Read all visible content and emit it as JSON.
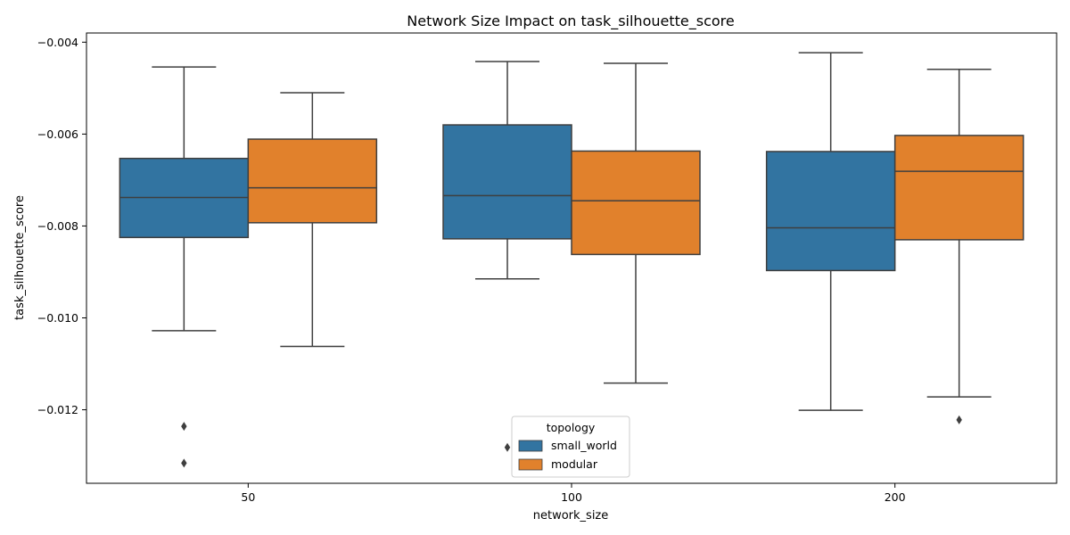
{
  "chart_data": {
    "type": "box",
    "title": "Network Size Impact on task_silhouette_score",
    "xlabel": "network_size",
    "ylabel": "task_silhouette_score",
    "categories": [
      "50",
      "100",
      "200"
    ],
    "ylim": [
      -0.0136,
      -0.0038
    ],
    "yticks": [
      -0.004,
      -0.006,
      -0.008,
      -0.01,
      -0.012
    ],
    "ytick_labels": [
      "−0.004",
      "−0.006",
      "−0.008",
      "−0.010",
      "−0.012"
    ],
    "grid": false,
    "legend": {
      "title": "topology",
      "placement": "lower-center"
    },
    "series": [
      {
        "name": "small_world",
        "color": "#3274a1",
        "boxes": [
          {
            "whisker_low": -0.01028,
            "q1": -0.00825,
            "median": -0.00738,
            "q3": -0.00653,
            "whisker_high": -0.00454,
            "outliers": [
              -0.01236,
              -0.01316
            ]
          },
          {
            "whisker_low": -0.00915,
            "q1": -0.00828,
            "median": -0.00734,
            "q3": -0.0058,
            "whisker_high": -0.00442,
            "outliers": [
              -0.01282
            ]
          },
          {
            "whisker_low": -0.01201,
            "q1": -0.00897,
            "median": -0.00804,
            "q3": -0.00638,
            "whisker_high": -0.00423,
            "outliers": []
          }
        ]
      },
      {
        "name": "modular",
        "color": "#e1812c",
        "boxes": [
          {
            "whisker_low": -0.01062,
            "q1": -0.00793,
            "median": -0.00717,
            "q3": -0.00611,
            "whisker_high": -0.0051,
            "outliers": []
          },
          {
            "whisker_low": -0.01142,
            "q1": -0.00862,
            "median": -0.00745,
            "q3": -0.00637,
            "whisker_high": -0.00446,
            "outliers": []
          },
          {
            "whisker_low": -0.01172,
            "q1": -0.0083,
            "median": -0.00681,
            "q3": -0.00603,
            "whisker_high": -0.00459,
            "outliers": [
              -0.01222
            ]
          }
        ]
      }
    ]
  }
}
